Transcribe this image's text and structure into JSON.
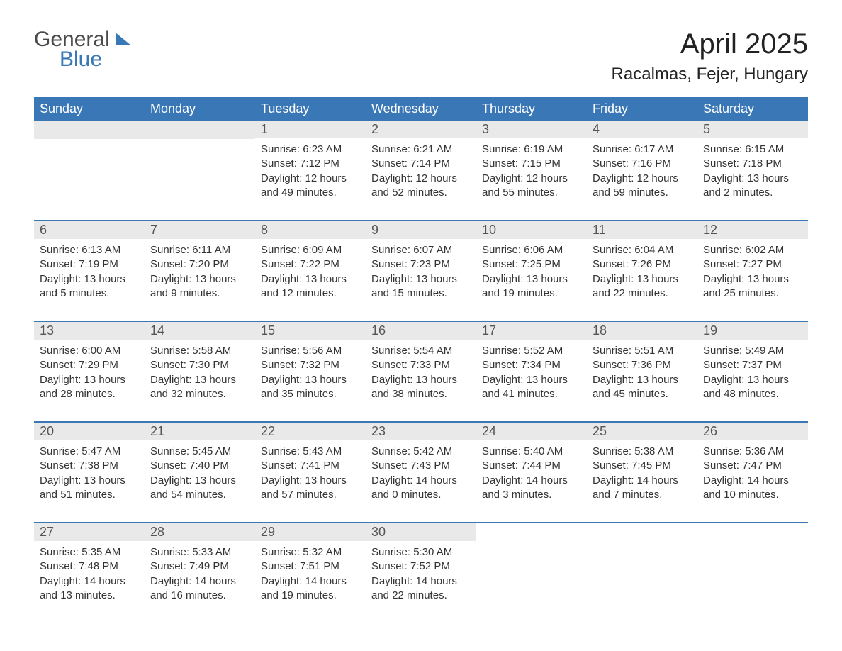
{
  "logo": {
    "general": "General",
    "blue": "Blue"
  },
  "title": "April 2025",
  "location": "Racalmas, Fejer, Hungary",
  "colors": {
    "header_bg": "#3a77b7",
    "header_text": "#ffffff",
    "band_bg": "#e9e9e9",
    "body_text": "#333333",
    "page_bg": "#ffffff"
  },
  "weekdays": [
    "Sunday",
    "Monday",
    "Tuesday",
    "Wednesday",
    "Thursday",
    "Friday",
    "Saturday"
  ],
  "weeks": [
    [
      null,
      null,
      {
        "n": "1",
        "sr": "Sunrise: 6:23 AM",
        "ss": "Sunset: 7:12 PM",
        "d1": "Daylight: 12 hours",
        "d2": "and 49 minutes."
      },
      {
        "n": "2",
        "sr": "Sunrise: 6:21 AM",
        "ss": "Sunset: 7:14 PM",
        "d1": "Daylight: 12 hours",
        "d2": "and 52 minutes."
      },
      {
        "n": "3",
        "sr": "Sunrise: 6:19 AM",
        "ss": "Sunset: 7:15 PM",
        "d1": "Daylight: 12 hours",
        "d2": "and 55 minutes."
      },
      {
        "n": "4",
        "sr": "Sunrise: 6:17 AM",
        "ss": "Sunset: 7:16 PM",
        "d1": "Daylight: 12 hours",
        "d2": "and 59 minutes."
      },
      {
        "n": "5",
        "sr": "Sunrise: 6:15 AM",
        "ss": "Sunset: 7:18 PM",
        "d1": "Daylight: 13 hours",
        "d2": "and 2 minutes."
      }
    ],
    [
      {
        "n": "6",
        "sr": "Sunrise: 6:13 AM",
        "ss": "Sunset: 7:19 PM",
        "d1": "Daylight: 13 hours",
        "d2": "and 5 minutes."
      },
      {
        "n": "7",
        "sr": "Sunrise: 6:11 AM",
        "ss": "Sunset: 7:20 PM",
        "d1": "Daylight: 13 hours",
        "d2": "and 9 minutes."
      },
      {
        "n": "8",
        "sr": "Sunrise: 6:09 AM",
        "ss": "Sunset: 7:22 PM",
        "d1": "Daylight: 13 hours",
        "d2": "and 12 minutes."
      },
      {
        "n": "9",
        "sr": "Sunrise: 6:07 AM",
        "ss": "Sunset: 7:23 PM",
        "d1": "Daylight: 13 hours",
        "d2": "and 15 minutes."
      },
      {
        "n": "10",
        "sr": "Sunrise: 6:06 AM",
        "ss": "Sunset: 7:25 PM",
        "d1": "Daylight: 13 hours",
        "d2": "and 19 minutes."
      },
      {
        "n": "11",
        "sr": "Sunrise: 6:04 AM",
        "ss": "Sunset: 7:26 PM",
        "d1": "Daylight: 13 hours",
        "d2": "and 22 minutes."
      },
      {
        "n": "12",
        "sr": "Sunrise: 6:02 AM",
        "ss": "Sunset: 7:27 PM",
        "d1": "Daylight: 13 hours",
        "d2": "and 25 minutes."
      }
    ],
    [
      {
        "n": "13",
        "sr": "Sunrise: 6:00 AM",
        "ss": "Sunset: 7:29 PM",
        "d1": "Daylight: 13 hours",
        "d2": "and 28 minutes."
      },
      {
        "n": "14",
        "sr": "Sunrise: 5:58 AM",
        "ss": "Sunset: 7:30 PM",
        "d1": "Daylight: 13 hours",
        "d2": "and 32 minutes."
      },
      {
        "n": "15",
        "sr": "Sunrise: 5:56 AM",
        "ss": "Sunset: 7:32 PM",
        "d1": "Daylight: 13 hours",
        "d2": "and 35 minutes."
      },
      {
        "n": "16",
        "sr": "Sunrise: 5:54 AM",
        "ss": "Sunset: 7:33 PM",
        "d1": "Daylight: 13 hours",
        "d2": "and 38 minutes."
      },
      {
        "n": "17",
        "sr": "Sunrise: 5:52 AM",
        "ss": "Sunset: 7:34 PM",
        "d1": "Daylight: 13 hours",
        "d2": "and 41 minutes."
      },
      {
        "n": "18",
        "sr": "Sunrise: 5:51 AM",
        "ss": "Sunset: 7:36 PM",
        "d1": "Daylight: 13 hours",
        "d2": "and 45 minutes."
      },
      {
        "n": "19",
        "sr": "Sunrise: 5:49 AM",
        "ss": "Sunset: 7:37 PM",
        "d1": "Daylight: 13 hours",
        "d2": "and 48 minutes."
      }
    ],
    [
      {
        "n": "20",
        "sr": "Sunrise: 5:47 AM",
        "ss": "Sunset: 7:38 PM",
        "d1": "Daylight: 13 hours",
        "d2": "and 51 minutes."
      },
      {
        "n": "21",
        "sr": "Sunrise: 5:45 AM",
        "ss": "Sunset: 7:40 PM",
        "d1": "Daylight: 13 hours",
        "d2": "and 54 minutes."
      },
      {
        "n": "22",
        "sr": "Sunrise: 5:43 AM",
        "ss": "Sunset: 7:41 PM",
        "d1": "Daylight: 13 hours",
        "d2": "and 57 minutes."
      },
      {
        "n": "23",
        "sr": "Sunrise: 5:42 AM",
        "ss": "Sunset: 7:43 PM",
        "d1": "Daylight: 14 hours",
        "d2": "and 0 minutes."
      },
      {
        "n": "24",
        "sr": "Sunrise: 5:40 AM",
        "ss": "Sunset: 7:44 PM",
        "d1": "Daylight: 14 hours",
        "d2": "and 3 minutes."
      },
      {
        "n": "25",
        "sr": "Sunrise: 5:38 AM",
        "ss": "Sunset: 7:45 PM",
        "d1": "Daylight: 14 hours",
        "d2": "and 7 minutes."
      },
      {
        "n": "26",
        "sr": "Sunrise: 5:36 AM",
        "ss": "Sunset: 7:47 PM",
        "d1": "Daylight: 14 hours",
        "d2": "and 10 minutes."
      }
    ],
    [
      {
        "n": "27",
        "sr": "Sunrise: 5:35 AM",
        "ss": "Sunset: 7:48 PM",
        "d1": "Daylight: 14 hours",
        "d2": "and 13 minutes."
      },
      {
        "n": "28",
        "sr": "Sunrise: 5:33 AM",
        "ss": "Sunset: 7:49 PM",
        "d1": "Daylight: 14 hours",
        "d2": "and 16 minutes."
      },
      {
        "n": "29",
        "sr": "Sunrise: 5:32 AM",
        "ss": "Sunset: 7:51 PM",
        "d1": "Daylight: 14 hours",
        "d2": "and 19 minutes."
      },
      {
        "n": "30",
        "sr": "Sunrise: 5:30 AM",
        "ss": "Sunset: 7:52 PM",
        "d1": "Daylight: 14 hours",
        "d2": "and 22 minutes."
      },
      null,
      null,
      null
    ]
  ]
}
